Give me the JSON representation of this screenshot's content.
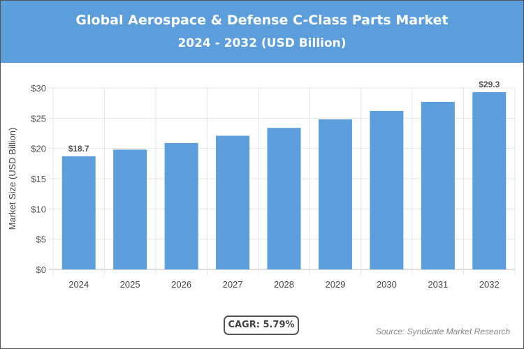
{
  "header": {
    "title": "Global Aerospace & Defense C-Class Parts Market",
    "subtitle": "2024 - 2032 (USD Billion)",
    "color": "#5b9edb"
  },
  "chart_data": {
    "type": "bar",
    "title": "Global Aerospace & Defense C-Class Parts Market",
    "subtitle": "2024 - 2032 (USD Billion)",
    "categories": [
      "2024",
      "2025",
      "2026",
      "2027",
      "2028",
      "2029",
      "2030",
      "2031",
      "2032"
    ],
    "values": [
      18.7,
      19.8,
      20.9,
      22.1,
      23.4,
      24.8,
      26.2,
      27.7,
      29.3
    ],
    "data_labels": {
      "0": "$18.7",
      "8": "$29.3"
    },
    "ylabel": "Market Size (USD Billion)",
    "xlabel": "",
    "ylim": [
      0,
      30
    ],
    "yticks": [
      "$0",
      "$5",
      "$10",
      "$15",
      "$20",
      "$25",
      "$30"
    ],
    "grid": true,
    "bar_color": "#5b9edb"
  },
  "footer": {
    "cagr": "CAGR: 5.79%",
    "source": "Source: Syndicate Market Research"
  }
}
